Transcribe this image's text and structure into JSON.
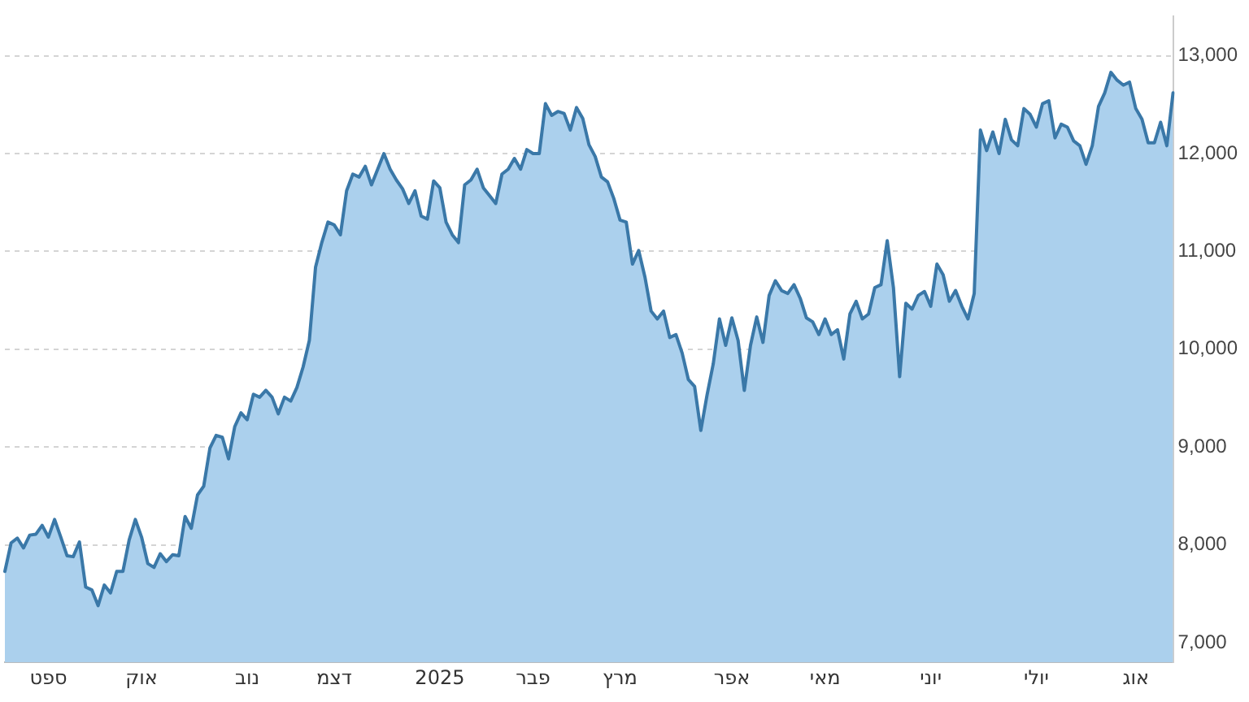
{
  "chart_data": {
    "type": "area",
    "categories": [
      null,
      null,
      null,
      null,
      null,
      null,
      null,
      "ספט",
      null,
      null,
      null,
      null,
      null,
      null,
      null,
      null,
      null,
      null,
      null,
      null,
      null,
      null,
      "אוק",
      null,
      null,
      null,
      null,
      null,
      null,
      null,
      null,
      null,
      null,
      null,
      null,
      null,
      null,
      null,
      null,
      "נוב",
      null,
      null,
      null,
      null,
      null,
      null,
      null,
      null,
      null,
      null,
      null,
      null,
      null,
      "דצמ",
      null,
      null,
      null,
      null,
      null,
      null,
      null,
      null,
      null,
      null,
      null,
      null,
      null,
      null,
      null,
      null,
      "2025",
      null,
      null,
      null,
      null,
      null,
      null,
      null,
      null,
      null,
      null,
      null,
      null,
      null,
      null,
      "פבר",
      null,
      null,
      null,
      null,
      null,
      null,
      null,
      null,
      null,
      null,
      null,
      null,
      null,
      "מרץ",
      null,
      null,
      null,
      null,
      null,
      null,
      null,
      null,
      null,
      null,
      null,
      null,
      null,
      null,
      null,
      null,
      null,
      "אפר",
      null,
      null,
      null,
      null,
      null,
      null,
      null,
      null,
      null,
      null,
      null,
      null,
      null,
      null,
      "מאי",
      null,
      null,
      null,
      null,
      null,
      null,
      null,
      null,
      null,
      null,
      null,
      null,
      null,
      null,
      null,
      null,
      "יוני",
      null,
      null,
      null,
      null,
      null,
      null,
      null,
      null,
      null,
      null,
      null,
      null,
      null,
      null,
      null,
      null,
      "יולי",
      null,
      null,
      null,
      null,
      null,
      null,
      null,
      null,
      null,
      null,
      null,
      null,
      null,
      null,
      null,
      "אוג",
      null,
      null,
      null,
      null,
      null,
      null
    ],
    "series": [
      {
        "color": "#3a78a8",
        "values": [
          7730,
          8020,
          8070,
          7970,
          8100,
          8110,
          8200,
          8080,
          8260,
          8080,
          7890,
          7880,
          8030,
          7570,
          7540,
          7380,
          7590,
          7510,
          7730,
          7730,
          8050,
          8260,
          8080,
          7810,
          7770,
          7910,
          7830,
          7900,
          7890,
          8290,
          8170,
          8510,
          8600,
          8990,
          9120,
          9100,
          8880,
          9210,
          9350,
          9280,
          9540,
          9510,
          9580,
          9510,
          9340,
          9510,
          9470,
          9610,
          9820,
          10090,
          10840,
          11090,
          11300,
          11270,
          11170,
          11620,
          11790,
          11760,
          11870,
          11680,
          11840,
          12000,
          11840,
          11730,
          11640,
          11490,
          11620,
          11360,
          11330,
          11720,
          11650,
          11300,
          11170,
          11090,
          11680,
          11730,
          11840,
          11650,
          11570,
          11490,
          11790,
          11840,
          11950,
          11840,
          12040,
          12000,
          12000,
          12510,
          12390,
          12430,
          12410,
          12240,
          12470,
          12360,
          12090,
          11970,
          11760,
          11710,
          11540,
          11320,
          11300,
          10870,
          11010,
          10740,
          10390,
          10310,
          10390,
          10120,
          10150,
          9960,
          9690,
          9620,
          9170,
          9530,
          9850,
          10310,
          10040,
          10320,
          10090,
          9580,
          10040,
          10330,
          10070,
          10550,
          10700,
          10600,
          10570,
          10660,
          10520,
          10320,
          10280,
          10150,
          10310,
          10150,
          10200,
          9900,
          10360,
          10490,
          10310,
          10360,
          10630,
          10660,
          11110,
          10630,
          9720,
          10470,
          10410,
          10550,
          10590,
          10440,
          10870,
          10760,
          10490,
          10600,
          10440,
          10310,
          10570,
          12240,
          12030,
          12220,
          12000,
          12350,
          12140,
          12080,
          12460,
          12400,
          12270,
          12510,
          12540,
          12160,
          12300,
          12270,
          12130,
          12080,
          11890,
          12080,
          12480,
          12620,
          12830,
          12750,
          12700,
          12730,
          12460,
          12350,
          12110,
          12110,
          12320,
          12080,
          12620
        ]
      }
    ],
    "ylim": [
      6800,
      13400
    ],
    "yticks": [
      {
        "value": 7000,
        "label": "7,000"
      },
      {
        "value": 8000,
        "label": "8,000"
      },
      {
        "value": 9000,
        "label": "9,000"
      },
      {
        "value": 10000,
        "label": "10,000"
      },
      {
        "value": 11000,
        "label": "11,000"
      },
      {
        "value": 12000,
        "label": "12,000"
      },
      {
        "value": 13000,
        "label": "13,000"
      }
    ],
    "grid": "y",
    "marker": "none",
    "line_style": "solid"
  }
}
